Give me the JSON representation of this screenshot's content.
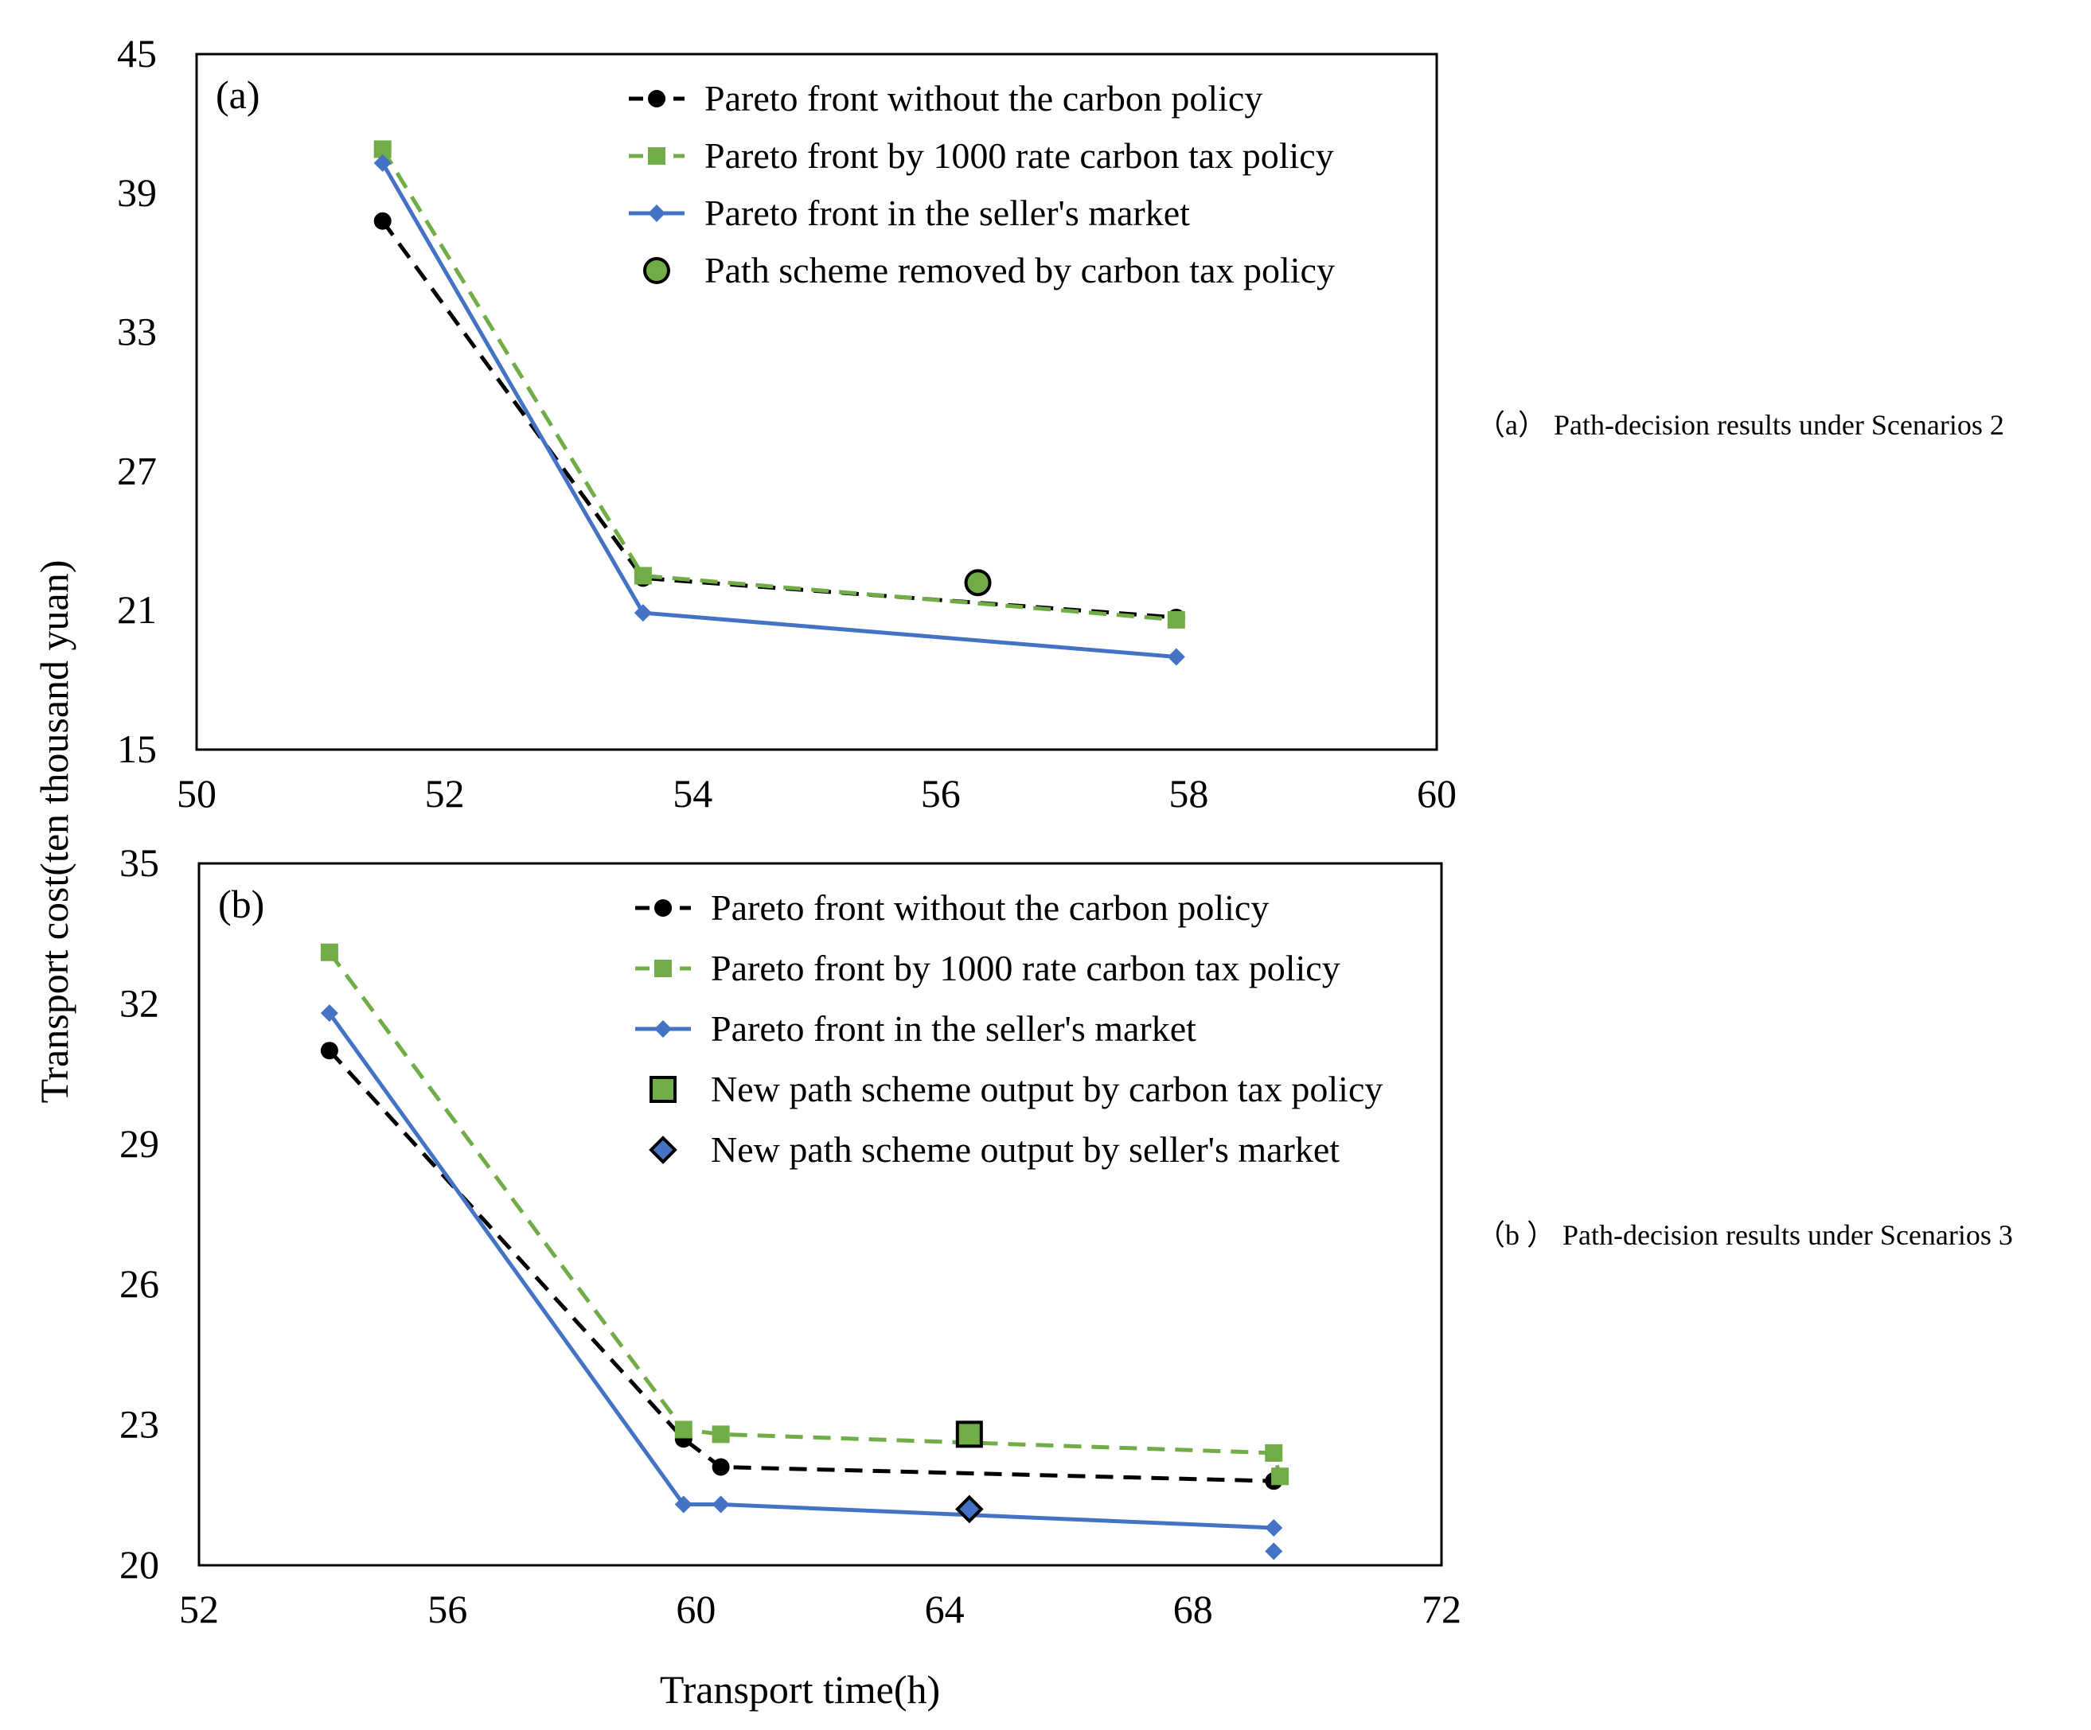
{
  "shared": {
    "ylabel": "Transport cost(ten thousand yuan)",
    "xlabel": "Transport time(h)"
  },
  "captions": {
    "a": "（a） Path-decision results under Scenarios 2",
    "b": "（b ） Path-decision results under Scenarios 3"
  },
  "colors": {
    "black": "#000000",
    "green": "#70ad47",
    "blue": "#4472c4",
    "frame": "#000000"
  },
  "chart_data": [
    {
      "type": "line",
      "panel_label": "(a)",
      "xlim": [
        50,
        60
      ],
      "ylim": [
        15,
        45
      ],
      "xticks": [
        50,
        52,
        54,
        56,
        58,
        60
      ],
      "yticks": [
        15,
        21,
        27,
        33,
        39,
        45
      ],
      "series": [
        {
          "name": "Pareto front without the carbon policy",
          "style": "black-dash-circle",
          "x": [
            51.5,
            53.6,
            57.9
          ],
          "y": [
            37.8,
            22.4,
            20.7
          ]
        },
        {
          "name": "Pareto front by 1000 rate carbon tax policy",
          "style": "green-dash-square",
          "x": [
            51.5,
            53.6,
            57.9
          ],
          "y": [
            40.9,
            22.5,
            20.6
          ]
        },
        {
          "name": "Pareto front in the seller's market",
          "style": "blue-solid-diamond",
          "x": [
            51.5,
            53.6,
            57.9
          ],
          "y": [
            40.3,
            20.9,
            19.0
          ]
        }
      ],
      "highlights": [
        {
          "name": "Path scheme removed by carbon tax policy",
          "style": "green-circle-outlined",
          "x": 56.3,
          "y": 22.2
        }
      ],
      "legend": [
        "Pareto front without the carbon policy",
        "Pareto front by 1000 rate carbon tax policy",
        "Pareto front in the seller's market",
        "Path scheme removed by carbon tax policy"
      ]
    },
    {
      "type": "line",
      "panel_label": "(b)",
      "xlim": [
        52,
        72
      ],
      "ylim": [
        20,
        35
      ],
      "xticks": [
        52,
        56,
        60,
        64,
        68,
        72
      ],
      "yticks": [
        20,
        23,
        26,
        29,
        32,
        35
      ],
      "series": [
        {
          "name": "Pareto front without the carbon policy",
          "style": "black-dash-circle",
          "x": [
            54.1,
            59.8,
            60.4,
            69.3
          ],
          "y": [
            31.0,
            22.7,
            22.1,
            21.8
          ]
        },
        {
          "name": "Pareto front by 1000 rate carbon tax policy",
          "style": "green-dash-square",
          "x": [
            54.1,
            59.8,
            60.4,
            69.3,
            69.4
          ],
          "y": [
            33.1,
            22.9,
            22.8,
            22.4,
            21.9
          ]
        },
        {
          "name": "Pareto front in the seller's market",
          "style": "blue-solid-diamond",
          "x": [
            54.1,
            59.8,
            60.4,
            69.3
          ],
          "y": [
            31.8,
            21.3,
            21.3,
            20.8
          ]
        }
      ],
      "extra_points": [
        {
          "style": "blue-diamond",
          "x": 69.3,
          "y": 20.3
        }
      ],
      "highlights": [
        {
          "name": "New path scheme output by carbon tax policy",
          "style": "green-square-outlined",
          "x": 64.4,
          "y": 22.8
        },
        {
          "name": "New path scheme output by seller's market",
          "style": "blue-diamond-outlined",
          "x": 64.4,
          "y": 21.2
        }
      ],
      "legend": [
        "Pareto front without the carbon policy",
        "Pareto front by 1000 rate carbon tax policy",
        "Pareto front in the seller's market",
        "New path scheme output by carbon tax policy",
        "New path scheme output by seller's market"
      ]
    }
  ]
}
